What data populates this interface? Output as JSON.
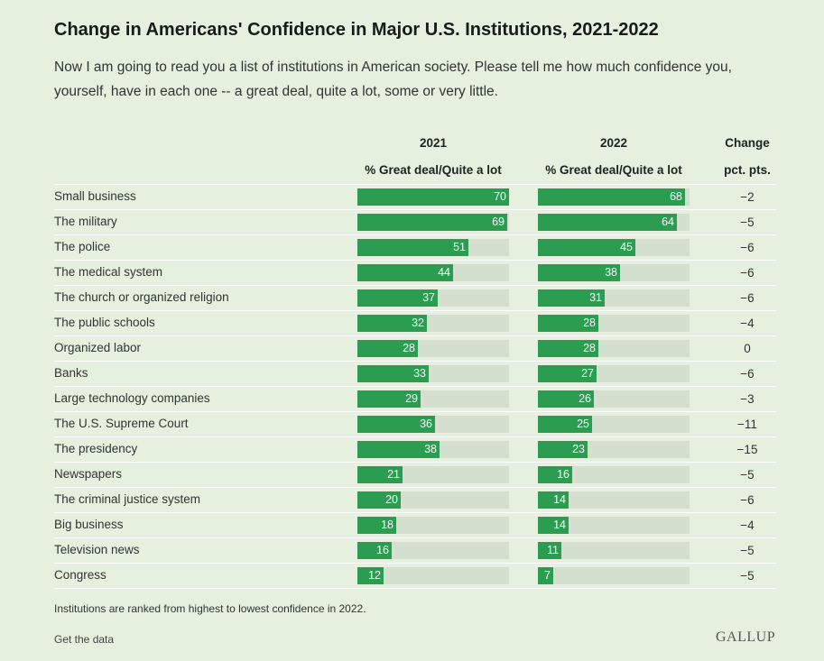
{
  "title": "Change in Americans' Confidence in Major U.S. Institutions, 2021-2022",
  "subtitle": "Now I am going to read you a list of institutions in American society. Please tell me how much confidence you, yourself, have in each one -- a great deal, quite a lot, some or very little.",
  "headers": {
    "y2021": "2021",
    "y2022": "2022",
    "change": "Change",
    "measure2021": "% Great deal/Quite a lot",
    "measure2022": "% Great deal/Quite a lot",
    "change_unit": "pct. pts."
  },
  "footnote": "Institutions are ranked from highest to lowest confidence in 2022.",
  "get_data": "Get the data",
  "logo_text": "GALLUP",
  "colors": {
    "bar": "#2a9d50",
    "track": "#d4dfd0",
    "background": "#e5f0df"
  },
  "chart_data": {
    "type": "bar",
    "xlim": [
      0,
      100
    ],
    "categories": [
      "Small business",
      "The military",
      "The police",
      "The medical system",
      "The church or organized religion",
      "The public schools",
      "Organized labor",
      "Banks",
      "Large technology companies",
      "The U.S. Supreme Court",
      "The presidency",
      "Newspapers",
      "The criminal justice system",
      "Big business",
      "Television news",
      "Congress"
    ],
    "series": [
      {
        "name": "2021",
        "values": [
          70,
          69,
          51,
          44,
          37,
          32,
          28,
          33,
          29,
          36,
          38,
          21,
          20,
          18,
          16,
          12
        ]
      },
      {
        "name": "2022",
        "values": [
          68,
          64,
          45,
          38,
          31,
          28,
          28,
          27,
          26,
          25,
          23,
          16,
          14,
          14,
          11,
          7
        ]
      }
    ],
    "change": [
      "−2",
      "−5",
      "−6",
      "−6",
      "−6",
      "−4",
      "0",
      "−6",
      "−3",
      "−11",
      "−15",
      "−5",
      "−6",
      "−4",
      "−5",
      "−5"
    ]
  }
}
